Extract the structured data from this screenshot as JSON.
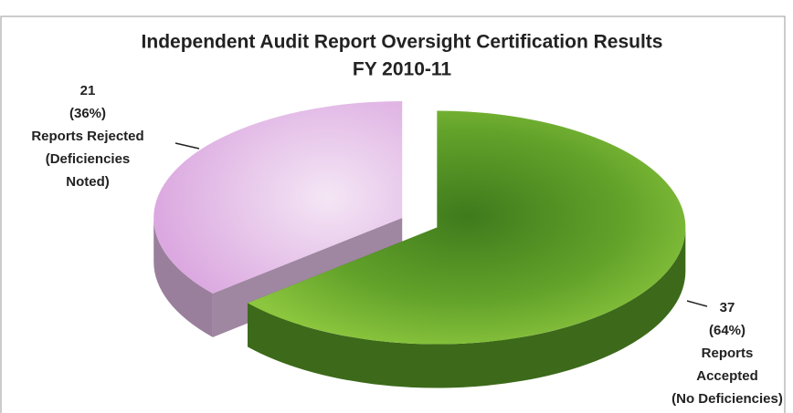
{
  "chart_data": {
    "type": "pie",
    "title": [
      "Independent Audit Report Oversight Certification Results",
      "FY 2010-11"
    ],
    "categories": [
      [
        "Reports Rejected",
        "(Deficiencies",
        "Noted)"
      ],
      [
        "Reports",
        "Accepted",
        "(No Deficiencies)"
      ]
    ],
    "values": [
      21,
      37
    ],
    "percent_labels": [
      "(36%)",
      "(64%)"
    ],
    "colors": [
      "#e9c6ec",
      "#6cab2c"
    ]
  }
}
